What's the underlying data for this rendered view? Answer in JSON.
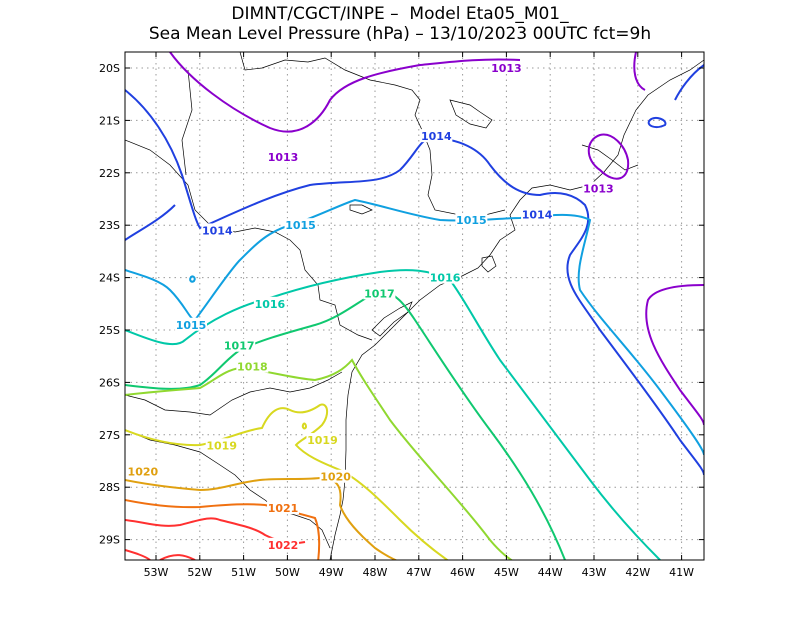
{
  "title": {
    "line1": "DIMNT/CGCT/INPE –  Model Eta05_M01_",
    "line2": "Sea Mean Level Pressure (hPa) – 13/10/2023 00UTC fct=9h"
  },
  "axes": {
    "lon_labels": [
      "53W",
      "52W",
      "51W",
      "50W",
      "49W",
      "48W",
      "47W",
      "46W",
      "45W",
      "44W",
      "43W",
      "42W",
      "41W"
    ],
    "lat_labels": [
      "20S",
      "21S",
      "22S",
      "23S",
      "24S",
      "25S",
      "26S",
      "27S",
      "28S",
      "29S"
    ]
  },
  "contours": [
    {
      "value": "1013",
      "color": "#8a00cc",
      "labels": [
        {
          "lon": -50.1,
          "lat": -21.7
        },
        {
          "lon": -45.0,
          "lat": -20.0
        },
        {
          "lon": -42.9,
          "lat": -22.3
        }
      ]
    },
    {
      "value": "1014",
      "color": "#2040e0",
      "labels": [
        {
          "lon": -51.6,
          "lat": -23.1
        },
        {
          "lon": -46.6,
          "lat": -21.3
        },
        {
          "lon": -44.3,
          "lat": -22.8
        }
      ]
    },
    {
      "value": "1015",
      "color": "#10a0e0",
      "labels": [
        {
          "lon": -52.2,
          "lat": -24.9
        },
        {
          "lon": -49.7,
          "lat": -23.0
        },
        {
          "lon": -45.8,
          "lat": -22.9
        }
      ]
    },
    {
      "value": "1016",
      "color": "#00c8a8",
      "labels": [
        {
          "lon": -50.4,
          "lat": -24.5
        },
        {
          "lon": -46.4,
          "lat": -24.0
        }
      ]
    },
    {
      "value": "1017",
      "color": "#10c870",
      "labels": [
        {
          "lon": -51.1,
          "lat": -25.3
        },
        {
          "lon": -47.9,
          "lat": -24.3
        }
      ]
    },
    {
      "value": "1018",
      "color": "#90d830",
      "labels": [
        {
          "lon": -50.8,
          "lat": -25.7
        }
      ]
    },
    {
      "value": "1019",
      "color": "#d8d820",
      "labels": [
        {
          "lon": -51.5,
          "lat": -27.2
        },
        {
          "lon": -49.2,
          "lat": -27.1
        }
      ]
    },
    {
      "value": "1020",
      "color": "#e0a010",
      "labels": [
        {
          "lon": -53.3,
          "lat": -27.7
        },
        {
          "lon": -48.9,
          "lat": -27.8
        }
      ]
    },
    {
      "value": "1021",
      "color": "#f07010",
      "labels": [
        {
          "lon": -50.1,
          "lat": -28.4
        }
      ]
    },
    {
      "value": "1022",
      "color": "#ff3030",
      "labels": [
        {
          "lon": -50.1,
          "lat": -29.1
        }
      ]
    }
  ]
}
